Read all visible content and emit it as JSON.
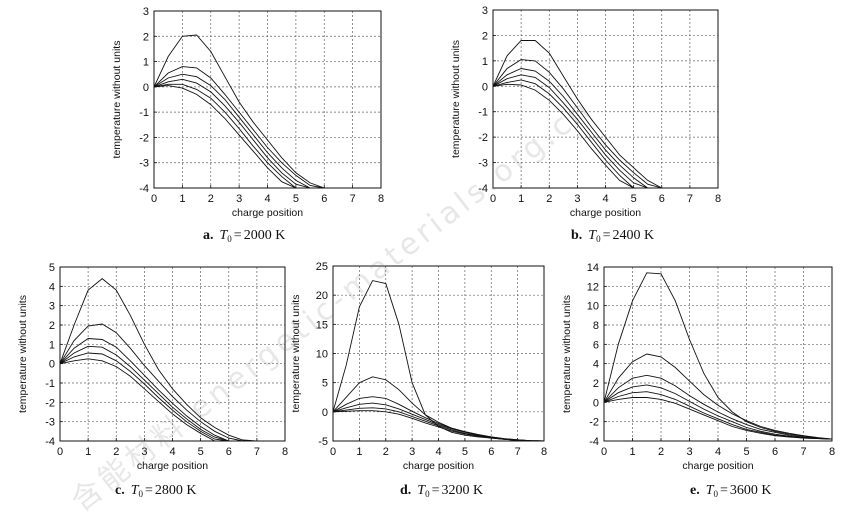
{
  "watermark": "含能材料 energetic-materials.org.cn",
  "chart_data": [
    {
      "panel": "a",
      "caption_letter": "a.",
      "caption_var": "T",
      "caption_sub": "0",
      "caption_value": "2000",
      "caption_unit": "K",
      "type": "line",
      "xlabel": "charge position",
      "ylabel": "temperature without units",
      "xlim": [
        0,
        8
      ],
      "ylim": [
        -4,
        3
      ],
      "xticks": [
        0,
        1,
        2,
        3,
        4,
        5,
        6,
        7,
        8
      ],
      "yticks": [
        3,
        2,
        1,
        0,
        -1,
        -2,
        -3,
        -4
      ],
      "grid": true,
      "x": [
        0,
        0.5,
        1,
        1.5,
        2,
        2.5,
        3,
        3.5,
        4,
        4.5,
        5,
        5.5,
        6,
        6.5,
        7,
        7.5,
        8
      ],
      "series": [
        {
          "values": [
            0,
            1.2,
            2.0,
            2.05,
            1.4,
            0.4,
            -0.6,
            -1.4,
            -2.1,
            -2.8,
            -3.4,
            -3.8,
            -4.0,
            null,
            null,
            null,
            null
          ]
        },
        {
          "values": [
            0,
            0.55,
            0.8,
            0.75,
            0.35,
            -0.3,
            -1.0,
            -1.7,
            -2.4,
            -3.0,
            -3.5,
            -3.9,
            -4.0,
            null,
            null,
            null,
            null
          ]
        },
        {
          "values": [
            0,
            0.35,
            0.5,
            0.4,
            0.05,
            -0.5,
            -1.2,
            -1.9,
            -2.6,
            -3.2,
            -3.7,
            -4.0,
            null,
            null,
            null,
            null,
            null
          ]
        },
        {
          "values": [
            0,
            0.2,
            0.3,
            0.15,
            -0.2,
            -0.75,
            -1.4,
            -2.1,
            -2.8,
            -3.4,
            -3.85,
            -4.0,
            null,
            null,
            null,
            null,
            null
          ]
        },
        {
          "values": [
            0,
            0.1,
            0.1,
            -0.1,
            -0.45,
            -1.0,
            -1.65,
            -2.35,
            -3.0,
            -3.55,
            -4.0,
            null,
            null,
            null,
            null,
            null,
            null
          ]
        },
        {
          "values": [
            0,
            0.05,
            -0.05,
            -0.3,
            -0.7,
            -1.25,
            -1.9,
            -2.55,
            -3.2,
            -3.75,
            -4.0,
            null,
            null,
            null,
            null,
            null,
            null
          ]
        }
      ]
    },
    {
      "panel": "b",
      "caption_letter": "b.",
      "caption_var": "T",
      "caption_sub": "0",
      "caption_value": "2400",
      "caption_unit": "K",
      "type": "line",
      "xlabel": "charge position",
      "ylabel": "temperature without units",
      "xlim": [
        0,
        8
      ],
      "ylim": [
        -4,
        3
      ],
      "xticks": [
        0,
        1,
        2,
        3,
        4,
        5,
        6,
        7,
        8
      ],
      "yticks": [
        3,
        2,
        1,
        0,
        -1,
        -2,
        -3,
        -4
      ],
      "grid": true,
      "x": [
        0,
        0.5,
        1,
        1.5,
        2,
        2.5,
        3,
        3.5,
        4,
        4.5,
        5,
        5.5,
        6,
        6.5,
        7,
        7.5,
        8
      ],
      "series": [
        {
          "values": [
            0,
            1.2,
            1.8,
            1.8,
            1.3,
            0.4,
            -0.5,
            -1.3,
            -2.0,
            -2.7,
            -3.2,
            -3.7,
            -4.0,
            null,
            null,
            null,
            null
          ]
        },
        {
          "values": [
            0,
            0.7,
            1.05,
            1.0,
            0.55,
            -0.1,
            -0.85,
            -1.6,
            -2.3,
            -2.9,
            -3.4,
            -3.85,
            -4.0,
            null,
            null,
            null,
            null
          ]
        },
        {
          "values": [
            0,
            0.45,
            0.7,
            0.6,
            0.2,
            -0.4,
            -1.1,
            -1.8,
            -2.5,
            -3.1,
            -3.6,
            -4.0,
            null,
            null,
            null,
            null,
            null
          ]
        },
        {
          "values": [
            0,
            0.3,
            0.45,
            0.35,
            -0.05,
            -0.65,
            -1.3,
            -2.0,
            -2.7,
            -3.3,
            -3.8,
            -4.0,
            null,
            null,
            null,
            null,
            null
          ]
        },
        {
          "values": [
            0,
            0.15,
            0.25,
            0.1,
            -0.3,
            -0.85,
            -1.5,
            -2.2,
            -2.9,
            -3.5,
            -4.0,
            null,
            null,
            null,
            null,
            null,
            null
          ]
        },
        {
          "values": [
            0,
            0.08,
            0.05,
            -0.15,
            -0.55,
            -1.1,
            -1.75,
            -2.45,
            -3.1,
            -3.7,
            -4.0,
            null,
            null,
            null,
            null,
            null,
            null
          ]
        }
      ]
    },
    {
      "panel": "c",
      "caption_letter": "c.",
      "caption_var": "T",
      "caption_sub": "0",
      "caption_value": "2800",
      "caption_unit": "K",
      "type": "line",
      "xlabel": "charge position",
      "ylabel": "temperature without units",
      "xlim": [
        0,
        8
      ],
      "ylim": [
        -4,
        5
      ],
      "xticks": [
        0,
        1,
        2,
        3,
        4,
        5,
        6,
        7,
        8
      ],
      "yticks": [
        5,
        4,
        3,
        2,
        1,
        0,
        -1,
        -2,
        -3,
        -4
      ],
      "grid": true,
      "x": [
        0,
        0.5,
        1,
        1.5,
        2,
        2.5,
        3,
        3.5,
        4,
        4.5,
        5,
        5.5,
        6,
        6.5,
        7,
        7.5,
        8
      ],
      "series": [
        {
          "values": [
            0,
            2.0,
            3.8,
            4.4,
            3.8,
            2.5,
            1.0,
            -0.3,
            -1.3,
            -2.1,
            -2.8,
            -3.3,
            -3.7,
            -3.95,
            -4.0,
            null,
            null
          ]
        },
        {
          "values": [
            0,
            1.2,
            1.95,
            2.05,
            1.6,
            0.8,
            -0.1,
            -0.9,
            -1.7,
            -2.4,
            -3.0,
            -3.5,
            -3.85,
            -4.0,
            null,
            null,
            null
          ]
        },
        {
          "values": [
            0,
            0.8,
            1.3,
            1.25,
            0.85,
            0.15,
            -0.6,
            -1.35,
            -2.05,
            -2.7,
            -3.25,
            -3.7,
            -4.0,
            null,
            null,
            null,
            null
          ]
        },
        {
          "values": [
            0,
            0.55,
            0.9,
            0.85,
            0.45,
            -0.15,
            -0.85,
            -1.55,
            -2.25,
            -2.85,
            -3.4,
            -3.8,
            -4.0,
            null,
            null,
            null,
            null
          ]
        },
        {
          "values": [
            0,
            0.35,
            0.55,
            0.5,
            0.15,
            -0.4,
            -1.05,
            -1.75,
            -2.4,
            -3.0,
            -3.5,
            -3.9,
            -4.0,
            null,
            null,
            null,
            null
          ]
        },
        {
          "values": [
            0,
            0.15,
            0.25,
            0.15,
            -0.15,
            -0.65,
            -1.3,
            -1.95,
            -2.6,
            -3.15,
            -3.6,
            -4.0,
            null,
            null,
            null,
            null,
            null
          ]
        }
      ]
    },
    {
      "panel": "d",
      "caption_letter": "d.",
      "caption_var": "T",
      "caption_sub": "0",
      "caption_value": "3200",
      "caption_unit": "K",
      "type": "line",
      "xlabel": "charge position",
      "ylabel": "temperature without units",
      "xlim": [
        0,
        8
      ],
      "ylim": [
        -5,
        25
      ],
      "xticks": [
        0,
        1,
        2,
        3,
        4,
        5,
        6,
        7,
        8
      ],
      "yticks": [
        25,
        20,
        15,
        10,
        5,
        0,
        -5
      ],
      "grid": true,
      "x": [
        0,
        0.5,
        1,
        1.5,
        2,
        2.5,
        3,
        3.5,
        4,
        4.5,
        5,
        5.5,
        6,
        6.5,
        7,
        7.5,
        8
      ],
      "series": [
        {
          "values": [
            0,
            8.0,
            18.0,
            22.5,
            22.0,
            15.0,
            5.0,
            -0.5,
            -2.5,
            -3.5,
            -4.0,
            -4.3,
            -4.5,
            -4.7,
            -4.85,
            -5.0,
            -5.0
          ]
        },
        {
          "values": [
            0,
            2.5,
            5.0,
            6.0,
            5.5,
            3.8,
            1.5,
            -0.5,
            -1.8,
            -2.8,
            -3.4,
            -3.9,
            -4.3,
            -4.6,
            -4.8,
            -4.95,
            -5.0
          ]
        },
        {
          "values": [
            0,
            1.3,
            2.3,
            2.6,
            2.3,
            1.3,
            0.1,
            -1.0,
            -2.0,
            -2.8,
            -3.4,
            -3.9,
            -4.3,
            -4.6,
            -4.8,
            -4.95,
            -5.0
          ]
        },
        {
          "values": [
            0,
            0.7,
            1.3,
            1.5,
            1.2,
            0.5,
            -0.4,
            -1.3,
            -2.2,
            -2.9,
            -3.5,
            -4.0,
            -4.4,
            -4.65,
            -4.85,
            -4.95,
            -5.0
          ]
        },
        {
          "values": [
            0,
            0.3,
            0.6,
            0.7,
            0.5,
            0.0,
            -0.8,
            -1.6,
            -2.4,
            -3.1,
            -3.7,
            -4.1,
            -4.45,
            -4.7,
            -4.85,
            -4.95,
            -5.0
          ]
        },
        {
          "values": [
            0,
            0.1,
            0.2,
            0.2,
            0.0,
            -0.4,
            -1.1,
            -1.9,
            -2.6,
            -3.3,
            -3.8,
            -4.2,
            -4.5,
            -4.7,
            -4.9,
            -4.95,
            -5.0
          ]
        }
      ]
    },
    {
      "panel": "e",
      "caption_letter": "e.",
      "caption_var": "T",
      "caption_sub": "0",
      "caption_value": "3600",
      "caption_unit": "K",
      "type": "line",
      "xlabel": "charge position",
      "ylabel": "temperature without units",
      "xlim": [
        0,
        8
      ],
      "ylim": [
        -4,
        14
      ],
      "xticks": [
        0,
        1,
        2,
        3,
        4,
        5,
        6,
        7,
        8
      ],
      "yticks": [
        14,
        12,
        10,
        8,
        6,
        4,
        2,
        0,
        -2,
        -4
      ],
      "grid": true,
      "x": [
        0,
        0.5,
        1,
        1.5,
        2,
        2.5,
        3,
        3.5,
        4,
        4.5,
        5,
        5.5,
        6,
        6.5,
        7,
        7.5,
        8
      ],
      "series": [
        {
          "values": [
            0,
            6.0,
            10.5,
            13.4,
            13.3,
            10.5,
            6.5,
            3.0,
            0.5,
            -1.0,
            -2.0,
            -2.6,
            -3.0,
            -3.3,
            -3.5,
            -3.7,
            -3.8
          ]
        },
        {
          "values": [
            0,
            2.5,
            4.2,
            5.0,
            4.7,
            3.6,
            2.2,
            0.8,
            -0.3,
            -1.2,
            -1.9,
            -2.5,
            -2.9,
            -3.2,
            -3.45,
            -3.65,
            -3.8
          ]
        },
        {
          "values": [
            0,
            1.5,
            2.5,
            2.8,
            2.5,
            1.7,
            0.7,
            -0.2,
            -1.0,
            -1.7,
            -2.3,
            -2.8,
            -3.1,
            -3.4,
            -3.6,
            -3.7,
            -3.8
          ]
        },
        {
          "values": [
            0,
            1.0,
            1.6,
            1.8,
            1.5,
            0.9,
            0.1,
            -0.7,
            -1.4,
            -2.0,
            -2.6,
            -3.0,
            -3.3,
            -3.5,
            -3.65,
            -3.75,
            -3.8
          ]
        },
        {
          "values": [
            0,
            0.6,
            1.0,
            1.1,
            0.8,
            0.3,
            -0.4,
            -1.1,
            -1.7,
            -2.3,
            -2.8,
            -3.1,
            -3.4,
            -3.55,
            -3.7,
            -3.75,
            -3.8
          ]
        },
        {
          "values": [
            0,
            0.3,
            0.5,
            0.5,
            0.3,
            -0.1,
            -0.7,
            -1.3,
            -1.9,
            -2.5,
            -2.9,
            -3.2,
            -3.45,
            -3.6,
            -3.7,
            -3.75,
            -3.8
          ]
        }
      ]
    }
  ]
}
